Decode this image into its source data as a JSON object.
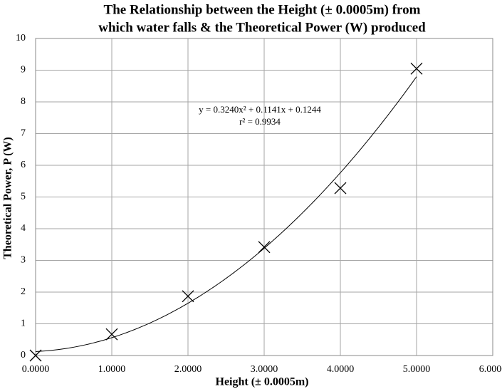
{
  "chart_data": {
    "type": "scatter",
    "title": [
      "The Relationship between the Height (± 0.0005m) from",
      "which water falls & the Theoretical Power (W) produced"
    ],
    "x_label": "Height (± 0.0005m)",
    "y_label": "Theoretical Power, P (W)",
    "x": [
      0,
      1,
      2,
      3,
      4,
      5
    ],
    "values": [
      0,
      0.67,
      1.87,
      3.42,
      5.28,
      9.05
    ],
    "color": "#000000",
    "xlim": [
      0,
      6
    ],
    "xticks": [
      {
        "value": 0,
        "label": "0.0000"
      },
      {
        "value": 1,
        "label": "1.0000"
      },
      {
        "value": 2,
        "label": "2.0000"
      },
      {
        "value": 3,
        "label": "3.0000"
      },
      {
        "value": 4,
        "label": "4.0000"
      },
      {
        "value": 5,
        "label": "5.0000"
      },
      {
        "value": 6,
        "label": "6.0000"
      }
    ],
    "ylim": [
      0,
      10
    ],
    "yticks": [
      0,
      1,
      2,
      3,
      4,
      5,
      6,
      7,
      8,
      9,
      10
    ],
    "grid": true,
    "trendline": {
      "label": "y = 0.3240x² + 0.1141x + 0.1244",
      "r2_label": "r² = 0.9934",
      "coefficients": [
        0.324,
        0.1141,
        0.1244
      ]
    }
  }
}
